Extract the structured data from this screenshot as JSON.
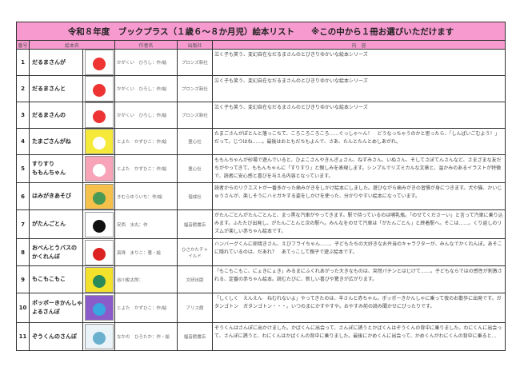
{
  "title": "令和８年度　ブックプラス（１歳６～８か月児）絵本リスト　　※この中から１冊お選びいただけます",
  "headers": {
    "num": "番号",
    "book": "絵本名",
    "author": "作者名",
    "publisher": "出版社",
    "content": "内　容"
  },
  "accent_color": "#f79ad0",
  "books": [
    {
      "num": "1",
      "title": "だるまさんが",
      "author": "かがくい　ひろし：作/絵",
      "publisher": "ブロンズ新社",
      "content": "泣く子も笑う、変幻自在なだるまさんのとびきりゆかいな絵本シリーズ",
      "cover_colors": [
        "#fff",
        "#e33"
      ]
    },
    {
      "num": "2",
      "title": "だるまさんと",
      "author": "かがくい　ひろし：作/絵",
      "publisher": "ブロンズ新社",
      "content": "泣く子も笑う、変幻自在なだるまさんのとびきりゆかいな絵本シリーズ",
      "cover_colors": [
        "#fff",
        "#e33"
      ]
    },
    {
      "num": "3",
      "title": "だるまさんの",
      "author": "かがくい　ひろし：作/絵",
      "publisher": "ブロンズ新社",
      "content": "泣く子も笑う、変幻自在なだるまさんのとびきりゆかいな絵本シリーズ",
      "cover_colors": [
        "#fff",
        "#e33"
      ]
    },
    {
      "num": "4",
      "title": "たまごさんがね",
      "author": "とよた　かずひこ：作/絵",
      "publisher": "童心社",
      "content": "たまごさんがぽとんと落っこちて、ころころころころ……ぐっしゃ～ん！　どうなっちゃうのかと思ったら、「しんぱいごむよう！」だって。じつはね……。最後はおともだちもよんで、さあ、たんとたんとめしあがれ。",
      "cover_colors": [
        "#f5e93a",
        "#fff"
      ]
    },
    {
      "num": "5",
      "title_lines": [
        "すりすり",
        "ももんちゃん"
      ],
      "author": "とよた　かずひこ：作/絵",
      "publisher": "童心社",
      "content": "ももんちゃんが砂場で遊んでいると、ひよこさんやきんぎょさん、ねずみさん、いぬさん、そしてさぼてんさんなど、さまざまな友だちがやってきて、ももんちゃんに「すりすり」と親しみを表現します。シンプルでリズミカルな文章と、温かみのあるイラストが特徴で、読者に安心感と喜びを与える内容となっています。",
      "cover_colors": [
        "#f7a3b8",
        "#fff"
      ]
    },
    {
      "num": "6",
      "title": "はみがきあそび",
      "author": "きむらゆういち：作/絵",
      "publisher": "偕成社",
      "content": "読者からのリクエストが一番多かった歯みがきをしかけ絵本にしました。遊びながら歯みがきの習慣が身につきます。犬や猫、かいじゅうさんが、楽しそうにハミガキする姿をしかけを使った、分かりやすい絵本になっています。",
      "cover_colors": [
        "#f6c14a",
        "#4a9a55"
      ]
    },
    {
      "num": "7",
      "title": "がたんごとん",
      "author": "安西　水丸：作",
      "publisher": "福音館書店",
      "content": "がたんごとんがたんごとんと、まっ黒な汽車がやってきます。駅で待っているのは哺乳瓶。「のせてくださーい」と言って汽車に乗り込みます。ふたたび出発し、がたんごとんと次の駅へ。みんなをのせて汽車は「がたんごとん」と終着駅へ。そこは……。くり返しのリズムが楽しい赤ちゃん絵本です。",
      "cover_colors": [
        "#fff",
        "#111"
      ]
    },
    {
      "num": "8",
      "title_lines": [
        "おべんとうバスの",
        "かくれんぼ"
      ],
      "author": "真珠　まりこ：著・絵",
      "publisher_lines": [
        "ひさかたチャ",
        "イルド"
      ],
      "content": "ハンバーグくんに卵焼きさん、えびフライちゃん……、子どもたちの大好きなお弁当のキャラクターが、みんなでかくれんぼ。あそこに隠れているのは、だあれ？　あてっこして親子で遊ぶ絵本です。",
      "cover_colors": [
        "#fff",
        "#d22"
      ]
    },
    {
      "num": "9",
      "title": "もこもこもこ",
      "author": "谷川俊太郎：",
      "publisher": "文研出版",
      "content": "「もこもこもこ、にょきにょき」みるまにふくれあがった大きなものは、突然パチンとはじけて……。子どもならではの感性が刺激される、定番の赤ちゃん絵本。読むたびに、新しい喜びや驚きが広がります。",
      "cover_colors": [
        "#f4e12c",
        "#2a8a5a"
      ]
    },
    {
      "num": "10",
      "title_lines": [
        "ポッポーきかんしゃ",
        "よるさんぽ"
      ],
      "author": "とよた　かずひこ：作/絵",
      "publisher": "アリス館",
      "content": "「しくしく　えんえん　ねむれないよ」やってきたのは、羊さんと赤ちゃん。ポッポーきかんしゃに乗って夜のお散歩に出発です。ガタンゴトン　ガタンゴトン・・・。いつのまにかすやすや。おやすみ前の読み聞かせにぴったりです。",
      "cover_colors": [
        "#8b5cc9",
        "#3aa5e0"
      ]
    },
    {
      "num": "11",
      "title": "ぞうくんのさんぽ",
      "author": "なかの　ひろたか：作・絵",
      "publisher": "福音館書店",
      "content": "ぞうくんはさんぽに出かけました。かばくんに出会って、さんぽに誘うとかばくんはぞうくんの背中に乗りました。わにくんに出会って、さんぽに誘うと、わにくんはかばくんの背中に乗りました。最後にかめくんに出会って、かめくんがわにくんの背中に乗ると…",
      "cover_colors": [
        "#eaf3f7",
        "#6ab0cf"
      ]
    }
  ]
}
